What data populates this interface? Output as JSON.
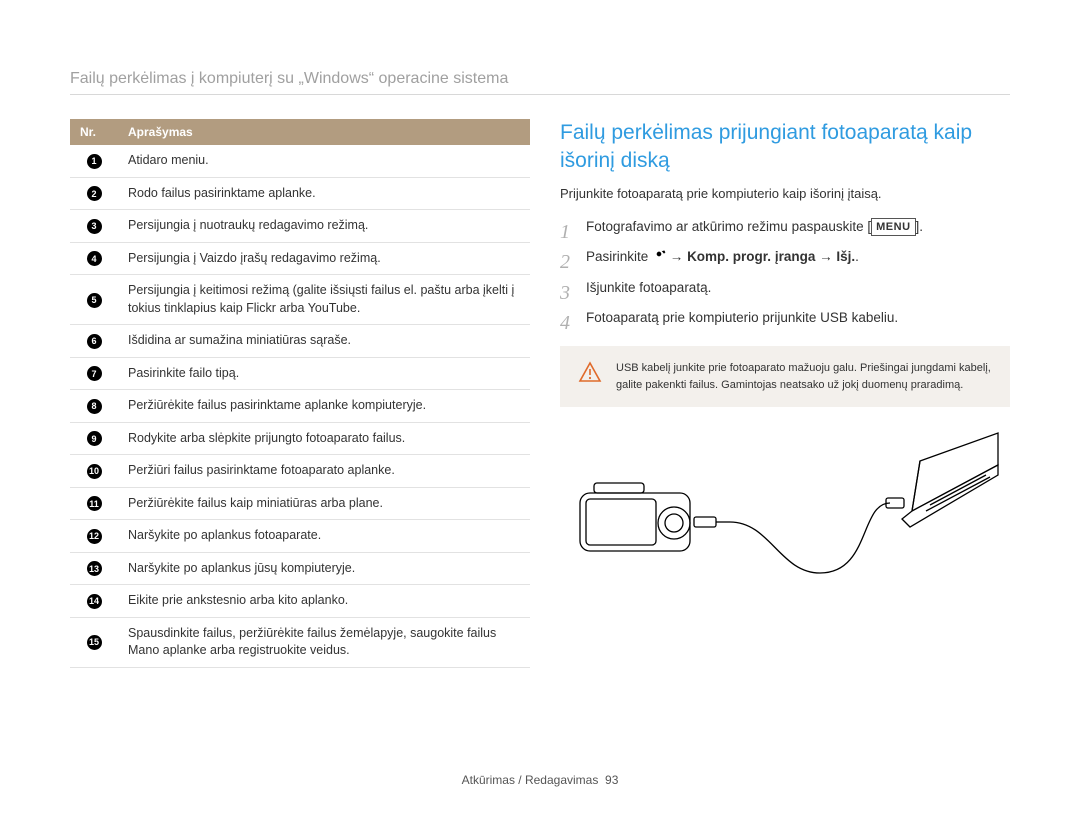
{
  "header": {
    "title": "Failų perkėlimas į kompiuterį su „Windows“ operacine sistema"
  },
  "table": {
    "col_nr": "Nr.",
    "col_desc": "Aprašymas",
    "header_bg": "#b29c80",
    "header_fg": "#ffffff",
    "rows": [
      {
        "num": "1",
        "text": "Atidaro meniu."
      },
      {
        "num": "2",
        "text": "Rodo failus pasirinktame aplanke."
      },
      {
        "num": "3",
        "text": "Persijungia į nuotraukų redagavimo režimą."
      },
      {
        "num": "4",
        "text": "Persijungia į Vaizdo įrašų redagavimo režimą."
      },
      {
        "num": "5",
        "text": "Persijungia į keitimosi režimą (galite išsiųsti failus el. paštu arba įkelti į tokius tinklapius kaip Flickr arba YouTube."
      },
      {
        "num": "6",
        "text": "Išdidina ar sumažina miniatiūras sąraše."
      },
      {
        "num": "7",
        "text": "Pasirinkite failo tipą."
      },
      {
        "num": "8",
        "text": "Peržiūrėkite failus pasirinktame aplanke kompiuteryje."
      },
      {
        "num": "9",
        "text": "Rodykite arba slėpkite prijungto fotoaparato failus."
      },
      {
        "num": "10",
        "text": "Peržiūri failus pasirinktame fotoaparato aplanke."
      },
      {
        "num": "11",
        "text": "Peržiūrėkite failus kaip miniatiūras arba plane."
      },
      {
        "num": "12",
        "text": "Naršykite po aplankus fotoaparate."
      },
      {
        "num": "13",
        "text": "Naršykite po aplankus jūsų kompiuteryje."
      },
      {
        "num": "14",
        "text": "Eikite prie ankstesnio arba kito aplanko."
      },
      {
        "num": "15",
        "text": "Spausdinkite failus, peržiūrėkite failus žemėlapyje, saugokite failus Mano aplanke arba registruokite veidus."
      }
    ]
  },
  "right": {
    "section_title": "Failų perkėlimas prijungiant fotoaparatą kaip išorinį diską",
    "intro": "Prijunkite fotoaparatą prie kompiuterio kaip išorinį įtaisą.",
    "steps": {
      "s1_pre": "Fotografavimo ar atkūrimo režimu paspauskite [",
      "s1_menu": "MENU",
      "s1_post": "].",
      "s2_pre": "Pasirinkite ",
      "s2_arrow1": " → ",
      "s2_bold1": "Komp. progr. įranga",
      "s2_arrow2": " → ",
      "s2_bold2": "Išj.",
      "s2_post": ".",
      "s3": "Išjunkite fotoaparatą.",
      "s4": "Fotoaparatą prie kompiuterio prijunkite USB kabeliu."
    },
    "warning": {
      "icon_color": "#e06a2a",
      "text": "USB kabelį junkite prie fotoaparato mažuoju galu. Priešingai jungdami kabelį, galite pakenkti failus. Gamintojas neatsako už jokį duomenų praradimą."
    }
  },
  "footer": {
    "section": "Atkūrimas / Redagavimas",
    "page": "93"
  },
  "colors": {
    "title_blue": "#2f9be0",
    "step_num": "#b0b0b0",
    "warn_bg": "#f3f0ec"
  }
}
